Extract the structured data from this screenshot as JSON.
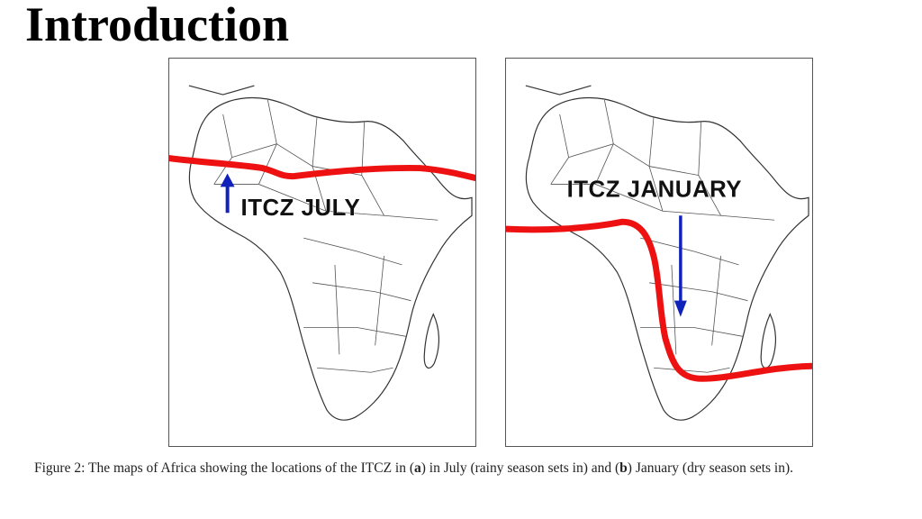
{
  "title": "Introduction",
  "maps": [
    {
      "label": "ITCZ JULY",
      "line_color": "#ee1111",
      "arrow_color": "#1122bb",
      "arrow_direction": "north"
    },
    {
      "label": "ITCZ JANUARY",
      "line_color": "#ee1111",
      "arrow_color": "#1122bb",
      "arrow_direction": "south"
    }
  ],
  "caption": {
    "prefix": "Figure 2: The maps of Africa showing the locations of the ITCZ in (",
    "a": "a",
    "mid1": ") in July (rainy season sets in) and (",
    "b": "b",
    "suffix": ") January (dry season sets in)."
  }
}
